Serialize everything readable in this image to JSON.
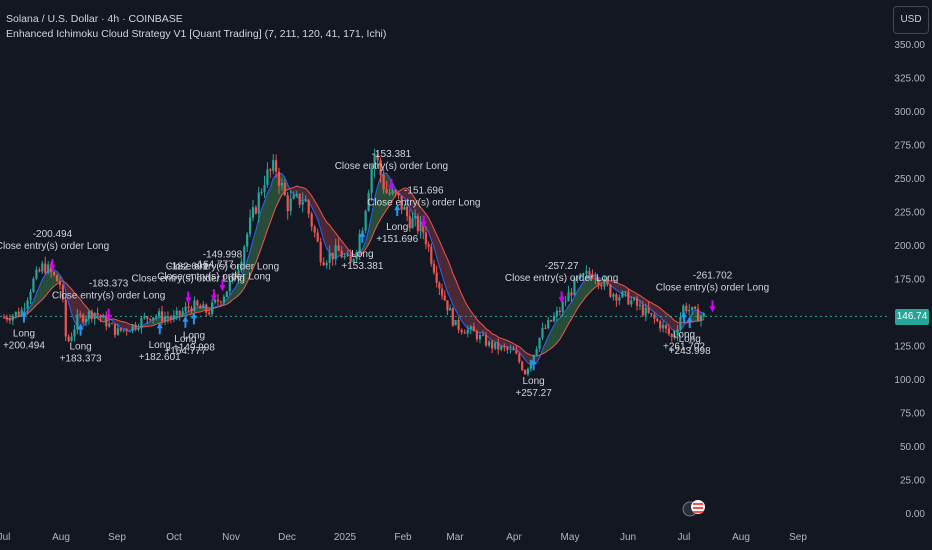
{
  "header": {
    "symbol_line": "Solana / U.S. Dollar · 4h · COINBASE",
    "strategy_line": "Enhanced Ichimoku Cloud Strategy V1 [Quant Trading] (7, 211, 120, 41, 171, Ichi)",
    "currency_button": "USD"
  },
  "current_price": "146.74",
  "colors": {
    "background": "#131722",
    "up": "#26a69a",
    "down": "#ef5350",
    "conversion": "#2962ff",
    "base": "#ef5350",
    "cloud_bull": "#2e5c3e",
    "cloud_bear": "#5c2e3b",
    "long_marker": "#2196f3",
    "close_marker": "#d500f9"
  },
  "chart_data": {
    "type": "candlestick",
    "title": "Solana / U.S. Dollar · 4h · COINBASE",
    "ylim": [
      0,
      350
    ],
    "y_ticks": [
      "350.00",
      "325.00",
      "300.00",
      "275.00",
      "250.00",
      "225.00",
      "200.00",
      "175.00",
      "150.00",
      "125.00",
      "100.00",
      "75.00",
      "50.00",
      "25.00",
      "0.00"
    ],
    "y_tick_values": [
      350,
      325,
      300,
      275,
      250,
      225,
      200,
      175,
      150,
      125,
      100,
      75,
      50,
      25,
      0
    ],
    "x_ticks": [
      "Jul",
      "Aug",
      "Sep",
      "Oct",
      "Nov",
      "Dec",
      "2025",
      "Feb",
      "Mar",
      "Apr",
      "May",
      "Jun",
      "Jul",
      "Aug",
      "Sep"
    ],
    "x_tick_index": [
      0,
      1,
      2,
      3,
      4,
      5,
      6,
      7,
      8,
      9,
      10,
      11,
      12,
      13,
      14
    ],
    "price_path": [
      {
        "m": 0.0,
        "p": 146
      },
      {
        "m": 0.3,
        "p": 150
      },
      {
        "m": 0.5,
        "p": 172
      },
      {
        "m": 0.7,
        "p": 185
      },
      {
        "m": 1.0,
        "p": 170
      },
      {
        "m": 1.1,
        "p": 125
      },
      {
        "m": 1.3,
        "p": 145
      },
      {
        "m": 1.6,
        "p": 150
      },
      {
        "m": 2.0,
        "p": 135
      },
      {
        "m": 2.3,
        "p": 140
      },
      {
        "m": 2.6,
        "p": 148
      },
      {
        "m": 3.0,
        "p": 145
      },
      {
        "m": 3.3,
        "p": 155
      },
      {
        "m": 3.6,
        "p": 150
      },
      {
        "m": 3.9,
        "p": 165
      },
      {
        "m": 4.1,
        "p": 180
      },
      {
        "m": 4.3,
        "p": 210
      },
      {
        "m": 4.6,
        "p": 250
      },
      {
        "m": 4.8,
        "p": 258
      },
      {
        "m": 5.0,
        "p": 230
      },
      {
        "m": 5.3,
        "p": 235
      },
      {
        "m": 5.6,
        "p": 190
      },
      {
        "m": 5.9,
        "p": 195
      },
      {
        "m": 6.1,
        "p": 185
      },
      {
        "m": 6.3,
        "p": 215
      },
      {
        "m": 6.5,
        "p": 270
      },
      {
        "m": 6.7,
        "p": 240
      },
      {
        "m": 6.9,
        "p": 235
      },
      {
        "m": 7.1,
        "p": 220
      },
      {
        "m": 7.4,
        "p": 210
      },
      {
        "m": 7.7,
        "p": 170
      },
      {
        "m": 8.0,
        "p": 140
      },
      {
        "m": 8.3,
        "p": 135
      },
      {
        "m": 8.6,
        "p": 125
      },
      {
        "m": 9.0,
        "p": 120
      },
      {
        "m": 9.2,
        "p": 105
      },
      {
        "m": 9.5,
        "p": 135
      },
      {
        "m": 9.8,
        "p": 150
      },
      {
        "m": 10.1,
        "p": 172
      },
      {
        "m": 10.4,
        "p": 180
      },
      {
        "m": 10.7,
        "p": 165
      },
      {
        "m": 11.0,
        "p": 160
      },
      {
        "m": 11.3,
        "p": 150
      },
      {
        "m": 11.6,
        "p": 140
      },
      {
        "m": 11.8,
        "p": 130
      },
      {
        "m": 12.0,
        "p": 155
      },
      {
        "m": 12.2,
        "p": 148
      },
      {
        "m": 12.35,
        "p": 146.74
      }
    ],
    "trades": [
      {
        "m": 0.35,
        "entry_label": "Long",
        "entry_value": "+200.494",
        "close_label": "Close entry(s) order Long",
        "close_value": "-200.494"
      },
      {
        "m": 1.35,
        "entry_label": "Long",
        "entry_value": "+183.373",
        "close_label": "Close entry(s) order Long",
        "close_value": "-183.373"
      },
      {
        "m": 2.75,
        "entry_label": "Long",
        "entry_value": "+182.601",
        "close_label": "Close entry(s) order Long",
        "close_value": "-182.601"
      },
      {
        "m": 3.2,
        "entry_label": "Long",
        "entry_value": "+164.777",
        "close_label": "Close entry(s) order Long",
        "close_value": "-164.777"
      },
      {
        "m": 3.35,
        "entry_label": "Long",
        "entry_value": "+149.998",
        "close_label": "Close entry(s) order Long",
        "close_value": "-149.998"
      },
      {
        "m": 6.3,
        "entry_label": "Long",
        "entry_value": "+153.381",
        "close_label": "Close entry(s) order Long",
        "close_value": "-153.381"
      },
      {
        "m": 6.9,
        "entry_label": "Long",
        "entry_value": "+151.696",
        "close_label": "Close entry(s) order Long",
        "close_value": "-151.696"
      },
      {
        "m": 9.35,
        "entry_label": "Long",
        "entry_value": "+257.27",
        "close_label": "Close entry(s) order Long",
        "close_value": "-257.27"
      },
      {
        "m": 12.0,
        "entry_label": "Long",
        "entry_value": "+261.702",
        "close_label": "Close entry(s) order Long",
        "close_value": "-261.702"
      },
      {
        "m": 12.1,
        "entry_label": "Long",
        "entry_value": "+243.998",
        "close_label": "",
        "close_value": ""
      }
    ],
    "grid": false,
    "legend": "top-left"
  }
}
